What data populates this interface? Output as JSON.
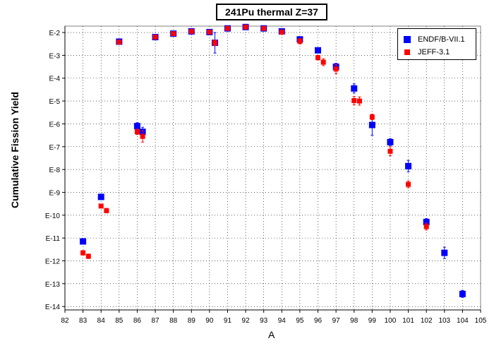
{
  "chart_data": {
    "type": "scatter",
    "title": "241Pu thermal Z=37",
    "xlabel": "A",
    "ylabel": "Cumulative Fission Yield",
    "xlim": [
      82,
      105
    ],
    "ylim_log": [
      -14,
      -2
    ],
    "y_scale": "log",
    "xticks": [
      "82",
      "83",
      "84",
      "85",
      "86",
      "87",
      "88",
      "89",
      "90",
      "91",
      "92",
      "93",
      "94",
      "95",
      "96",
      "97",
      "98",
      "99",
      "100",
      "101",
      "102",
      "103",
      "104",
      "105"
    ],
    "yticks": [
      {
        "exp": -2,
        "label": "E-2"
      },
      {
        "exp": -3,
        "label": "E-3"
      },
      {
        "exp": -4,
        "label": "E-4"
      },
      {
        "exp": -5,
        "label": "E-5"
      },
      {
        "exp": -6,
        "label": "E-6"
      },
      {
        "exp": -7,
        "label": "E-7"
      },
      {
        "exp": -8,
        "label": "E-8"
      },
      {
        "exp": -9,
        "label": "E-9"
      },
      {
        "exp": -10,
        "label": "E-10"
      },
      {
        "exp": -11,
        "label": "E-11"
      },
      {
        "exp": -12,
        "label": "E-12"
      },
      {
        "exp": -13,
        "label": "E-13"
      },
      {
        "exp": -14,
        "label": "E-14"
      }
    ],
    "grid": true,
    "legend_position": "top-right",
    "series": [
      {
        "name": "ENDF/B-VII.1",
        "color": "#0000ff",
        "marker": "square-large",
        "points": [
          {
            "x": 83.0,
            "log10y": -11.15,
            "err": 0.12
          },
          {
            "x": 84.0,
            "log10y": -9.2,
            "err": 0.1
          },
          {
            "x": 85.0,
            "log10y": -2.4,
            "err": 0.05
          },
          {
            "x": 86.0,
            "log10y": -6.1,
            "err": 0.15
          },
          {
            "x": 86.3,
            "log10y": -6.35,
            "err": 0.2
          },
          {
            "x": 87.0,
            "log10y": -2.2,
            "err": 0.05
          },
          {
            "x": 88.0,
            "log10y": -2.05,
            "err": 0.04
          },
          {
            "x": 89.0,
            "log10y": -1.95,
            "err": 0.04
          },
          {
            "x": 90.0,
            "log10y": -1.98,
            "err": 0.04
          },
          {
            "x": 90.3,
            "log10y": -2.45,
            "err": 0.45
          },
          {
            "x": 91.0,
            "log10y": -1.82,
            "err": 0.05
          },
          {
            "x": 92.0,
            "log10y": -1.76,
            "err": 0.04
          },
          {
            "x": 93.0,
            "log10y": -1.82,
            "err": 0.04
          },
          {
            "x": 94.0,
            "log10y": -1.95,
            "err": 0.04
          },
          {
            "x": 95.0,
            "log10y": -2.3,
            "err": 0.08
          },
          {
            "x": 96.0,
            "log10y": -2.78,
            "err": 0.1
          },
          {
            "x": 97.0,
            "log10y": -3.5,
            "err": 0.15
          },
          {
            "x": 98.0,
            "log10y": -4.45,
            "err": 0.2
          },
          {
            "x": 99.0,
            "log10y": -6.05,
            "err": 0.45
          },
          {
            "x": 100.0,
            "log10y": -6.8,
            "err": 0.15
          },
          {
            "x": 101.0,
            "log10y": -7.85,
            "err": 0.25
          },
          {
            "x": 102.0,
            "log10y": -10.3,
            "err": 0.15
          },
          {
            "x": 103.0,
            "log10y": -11.65,
            "err": 0.25
          },
          {
            "x": 104.0,
            "log10y": -13.45,
            "err": 0.15
          }
        ]
      },
      {
        "name": "JEFF-3.1",
        "color": "#ff0000",
        "marker": "square-small",
        "points": [
          {
            "x": 83.0,
            "log10y": -11.65,
            "err": 0.1
          },
          {
            "x": 83.3,
            "log10y": -11.8,
            "err": 0.1
          },
          {
            "x": 84.0,
            "log10y": -9.6,
            "err": 0.08
          },
          {
            "x": 84.3,
            "log10y": -9.8,
            "err": 0.1
          },
          {
            "x": 85.0,
            "log10y": -2.42,
            "err": 0.04
          },
          {
            "x": 86.0,
            "log10y": -6.35,
            "err": 0.12
          },
          {
            "x": 86.3,
            "log10y": -6.55,
            "err": 0.25
          },
          {
            "x": 87.0,
            "log10y": -2.2,
            "err": 0.05
          },
          {
            "x": 88.0,
            "log10y": -2.05,
            "err": 0.04
          },
          {
            "x": 89.0,
            "log10y": -1.95,
            "err": 0.04
          },
          {
            "x": 90.0,
            "log10y": -1.98,
            "err": 0.04
          },
          {
            "x": 90.3,
            "log10y": -2.45,
            "err": 0.12
          },
          {
            "x": 91.0,
            "log10y": -1.82,
            "err": 0.05
          },
          {
            "x": 92.0,
            "log10y": -1.76,
            "err": 0.04
          },
          {
            "x": 93.0,
            "log10y": -1.82,
            "err": 0.04
          },
          {
            "x": 94.0,
            "log10y": -1.98,
            "err": 0.04
          },
          {
            "x": 95.0,
            "log10y": -2.38,
            "err": 0.12
          },
          {
            "x": 96.0,
            "log10y": -3.1,
            "err": 0.1
          },
          {
            "x": 96.3,
            "log10y": -3.3,
            "err": 0.15
          },
          {
            "x": 97.0,
            "log10y": -3.6,
            "err": 0.2
          },
          {
            "x": 98.0,
            "log10y": -4.98,
            "err": 0.18
          },
          {
            "x": 98.3,
            "log10y": -5.0,
            "err": 0.18
          },
          {
            "x": 99.0,
            "log10y": -5.7,
            "err": 0.12
          },
          {
            "x": 100.0,
            "log10y": -7.2,
            "err": 0.2
          },
          {
            "x": 101.0,
            "log10y": -8.65,
            "err": 0.15
          },
          {
            "x": 102.0,
            "log10y": -10.5,
            "err": 0.15
          }
        ]
      }
    ]
  }
}
